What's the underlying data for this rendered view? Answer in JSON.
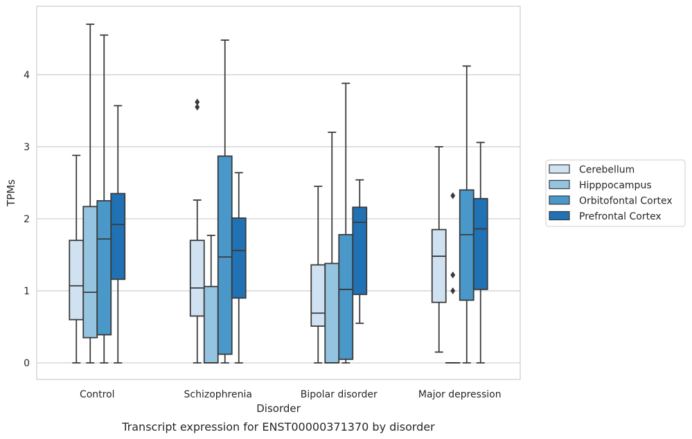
{
  "chart_data": {
    "type": "box",
    "title": "Transcript expression for ENST00000371370 by disorder",
    "xlabel": "Disorder",
    "ylabel": "TPMs",
    "categories": [
      "Control",
      "Schizophrenia",
      "Bipolar disorder",
      "Major depression"
    ],
    "ylim": [
      -0.23,
      4.95
    ],
    "yticks": [
      0,
      1,
      2,
      3,
      4
    ],
    "grid": "horizontal",
    "legend_position": "right",
    "series": [
      {
        "name": "Cerebellum",
        "color": "#d0e1f2",
        "boxes": [
          {
            "min": 0.0,
            "q1": 0.6,
            "median": 1.07,
            "q3": 1.7,
            "max": 2.88,
            "outliers": []
          },
          {
            "min": 0.0,
            "q1": 0.65,
            "median": 1.04,
            "q3": 1.7,
            "max": 2.26,
            "outliers": [
              3.55,
              3.62
            ]
          },
          {
            "min": 0.0,
            "q1": 0.51,
            "median": 0.69,
            "q3": 1.36,
            "max": 2.45,
            "outliers": []
          },
          {
            "min": 0.15,
            "q1": 0.84,
            "median": 1.48,
            "q3": 1.85,
            "max": 3.0,
            "outliers": []
          }
        ]
      },
      {
        "name": "Hipppocampus",
        "color": "#94c4df",
        "boxes": [
          {
            "min": 0.0,
            "q1": 0.35,
            "median": 0.98,
            "q3": 2.17,
            "max": 4.7,
            "outliers": []
          },
          {
            "min": 0.0,
            "q1": 0.0,
            "median": 0.0,
            "q3": 1.06,
            "max": 1.77,
            "outliers": []
          },
          {
            "min": 0.0,
            "q1": 0.0,
            "median": 0.0,
            "q3": 1.38,
            "max": 3.2,
            "outliers": []
          },
          {
            "min": 0.0,
            "q1": 0.0,
            "median": 0.0,
            "q3": 0.0,
            "max": 0.0,
            "outliers": [
              1.0,
              1.22,
              2.32
            ]
          }
        ]
      },
      {
        "name": "Orbitofontal Cortex",
        "color": "#4a98c9",
        "boxes": [
          {
            "min": 0.0,
            "q1": 0.39,
            "median": 1.72,
            "q3": 2.25,
            "max": 4.55,
            "outliers": []
          },
          {
            "min": 0.0,
            "q1": 0.12,
            "median": 1.47,
            "q3": 2.87,
            "max": 4.48,
            "outliers": []
          },
          {
            "min": 0.0,
            "q1": 0.05,
            "median": 1.02,
            "q3": 1.78,
            "max": 3.88,
            "outliers": []
          },
          {
            "min": 0.0,
            "q1": 0.87,
            "median": 1.78,
            "q3": 2.4,
            "max": 4.12,
            "outliers": []
          }
        ]
      },
      {
        "name": "Prefrontal Cortex",
        "color": "#2171b5",
        "boxes": [
          {
            "min": 0.0,
            "q1": 1.16,
            "median": 1.92,
            "q3": 2.35,
            "max": 3.57,
            "outliers": []
          },
          {
            "min": 0.0,
            "q1": 0.9,
            "median": 1.56,
            "q3": 2.01,
            "max": 2.64,
            "outliers": []
          },
          {
            "min": 0.55,
            "q1": 0.95,
            "median": 1.95,
            "q3": 2.16,
            "max": 2.54,
            "outliers": []
          },
          {
            "min": 0.0,
            "q1": 1.02,
            "median": 1.86,
            "q3": 2.28,
            "max": 3.06,
            "outliers": []
          }
        ]
      }
    ]
  }
}
